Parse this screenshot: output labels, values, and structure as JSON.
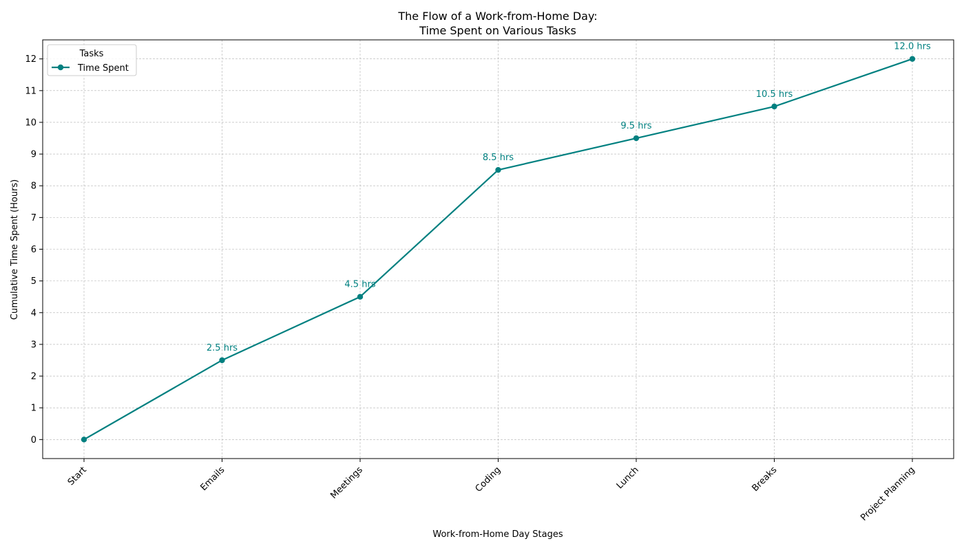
{
  "chart_data": {
    "type": "line",
    "title_lines": [
      "The Flow of a Work-from-Home Day:",
      "Time Spent on Various Tasks"
    ],
    "xlabel": "Work-from-Home Day Stages",
    "ylabel": "Cumulative Time Spent (Hours)",
    "categories": [
      "Start",
      "Emails",
      "Meetings",
      "Coding",
      "Lunch",
      "Breaks",
      "Project Planning"
    ],
    "series": [
      {
        "name": "Time Spent",
        "values": [
          0,
          2.5,
          4.5,
          8.5,
          9.5,
          10.5,
          12.0
        ],
        "point_labels": [
          "",
          "2.5 hrs",
          "4.5 hrs",
          "8.5 hrs",
          "9.5 hrs",
          "10.5 hrs",
          "12.0 hrs"
        ],
        "color": "#008080"
      }
    ],
    "yticks": [
      "0",
      "1",
      "2",
      "3",
      "4",
      "5",
      "6",
      "7",
      "8",
      "9",
      "10",
      "11",
      "12"
    ],
    "ylim": [
      -0.6,
      12.6
    ],
    "grid": true,
    "legend": {
      "title": "Tasks",
      "position": "top-left"
    },
    "colors": {
      "line": "#008080",
      "grid": "#b0b0b0",
      "axes": "#000000"
    }
  }
}
